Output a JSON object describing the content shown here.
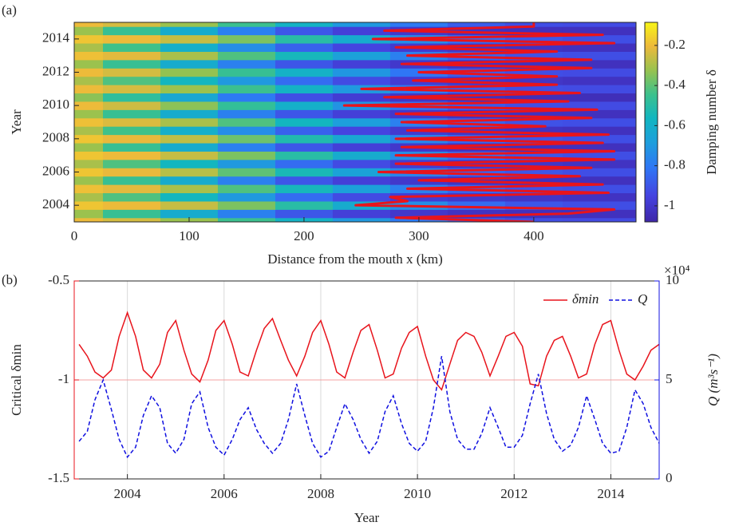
{
  "chart_data": [
    {
      "type": "heatmap",
      "panel_label": "(a)",
      "x_label": "Distance from the mouth x (km)",
      "y_label": "Year",
      "colorbar_label": "Damping number δ",
      "xlim": [
        0,
        489
      ],
      "xticks": [
        0,
        100,
        200,
        300,
        400
      ],
      "ylim": [
        2003,
        2015
      ],
      "yticks": [
        2004,
        2006,
        2008,
        2010,
        2012,
        2014
      ],
      "clim": [
        -1.08,
        -0.085
      ],
      "cticks": [
        -1,
        -0.8,
        -0.6,
        -0.4,
        -0.2
      ],
      "colormap": "parula",
      "x": [
        0,
        50,
        100,
        150,
        200,
        250,
        300,
        350,
        400,
        450
      ],
      "y": [
        2003,
        2003.5,
        2004,
        2004.5,
        2005,
        2005.5,
        2006,
        2006.5,
        2007,
        2007.5,
        2008,
        2008.5,
        2009,
        2009.5,
        2010,
        2010.5,
        2011,
        2011.5,
        2012,
        2012.5,
        2013,
        2013.5,
        2014,
        2014.5,
        2015
      ],
      "z": [
        [
          -0.2,
          -0.24,
          -0.32,
          -0.45,
          -0.58,
          -0.7,
          -0.8,
          -0.88,
          -0.92,
          -0.93
        ],
        [
          -0.32,
          -0.46,
          -0.62,
          -0.78,
          -0.9,
          -0.97,
          -1.0,
          -1.02,
          -1.03,
          -1.03
        ],
        [
          -0.18,
          -0.2,
          -0.26,
          -0.36,
          -0.5,
          -0.62,
          -0.74,
          -0.84,
          -0.9,
          -0.92
        ],
        [
          -0.3,
          -0.42,
          -0.56,
          -0.7,
          -0.84,
          -0.93,
          -0.98,
          -1.0,
          -1.01,
          -1.02
        ],
        [
          -0.19,
          -0.22,
          -0.3,
          -0.42,
          -0.55,
          -0.67,
          -0.78,
          -0.86,
          -0.91,
          -0.92
        ],
        [
          -0.32,
          -0.46,
          -0.62,
          -0.78,
          -0.9,
          -0.97,
          -1.0,
          -1.02,
          -1.03,
          -1.03
        ],
        [
          -0.18,
          -0.21,
          -0.28,
          -0.4,
          -0.54,
          -0.66,
          -0.77,
          -0.86,
          -0.9,
          -0.92
        ],
        [
          -0.3,
          -0.42,
          -0.56,
          -0.7,
          -0.84,
          -0.93,
          -0.98,
          -1.0,
          -1.01,
          -1.02
        ],
        [
          -0.18,
          -0.2,
          -0.26,
          -0.36,
          -0.5,
          -0.62,
          -0.74,
          -0.84,
          -0.9,
          -0.92
        ],
        [
          -0.32,
          -0.46,
          -0.62,
          -0.78,
          -0.9,
          -0.97,
          -1.0,
          -1.02,
          -1.03,
          -1.03
        ],
        [
          -0.18,
          -0.21,
          -0.27,
          -0.38,
          -0.52,
          -0.64,
          -0.76,
          -0.85,
          -0.9,
          -0.92
        ],
        [
          -0.3,
          -0.44,
          -0.6,
          -0.74,
          -0.87,
          -0.95,
          -0.99,
          -1.01,
          -1.02,
          -1.03
        ],
        [
          -0.19,
          -0.23,
          -0.3,
          -0.42,
          -0.56,
          -0.68,
          -0.78,
          -0.86,
          -0.91,
          -0.92
        ],
        [
          -0.32,
          -0.46,
          -0.62,
          -0.78,
          -0.9,
          -0.97,
          -1.0,
          -1.02,
          -1.03,
          -1.03
        ],
        [
          -0.2,
          -0.25,
          -0.34,
          -0.47,
          -0.6,
          -0.72,
          -0.82,
          -0.89,
          -0.92,
          -0.93
        ],
        [
          -0.34,
          -0.48,
          -0.64,
          -0.8,
          -0.92,
          -0.98,
          -1.01,
          -1.03,
          -1.04,
          -1.04
        ],
        [
          -0.2,
          -0.24,
          -0.32,
          -0.45,
          -0.58,
          -0.7,
          -0.8,
          -0.88,
          -0.92,
          -0.93
        ],
        [
          -0.3,
          -0.42,
          -0.56,
          -0.7,
          -0.84,
          -0.93,
          -0.98,
          -1.0,
          -1.01,
          -1.02
        ],
        [
          -0.2,
          -0.24,
          -0.33,
          -0.46,
          -0.59,
          -0.71,
          -0.81,
          -0.88,
          -0.92,
          -0.93
        ],
        [
          -0.32,
          -0.46,
          -0.62,
          -0.78,
          -0.9,
          -0.97,
          -1.0,
          -1.02,
          -1.03,
          -1.03
        ],
        [
          -0.19,
          -0.22,
          -0.3,
          -0.42,
          -0.55,
          -0.67,
          -0.78,
          -0.86,
          -0.91,
          -0.92
        ],
        [
          -0.3,
          -0.44,
          -0.6,
          -0.74,
          -0.87,
          -0.95,
          -0.99,
          -1.01,
          -1.02,
          -1.03
        ],
        [
          -0.18,
          -0.2,
          -0.26,
          -0.36,
          -0.5,
          -0.62,
          -0.74,
          -0.84,
          -0.9,
          -0.92
        ],
        [
          -0.32,
          -0.46,
          -0.62,
          -0.78,
          -0.9,
          -0.97,
          -1.0,
          -1.02,
          -1.03,
          -1.03
        ],
        [
          -0.2,
          -0.24,
          -0.32,
          -0.45,
          -0.58,
          -0.7,
          -0.8,
          -0.88,
          -0.92,
          -0.93
        ]
      ],
      "contour_color": "#e8141c",
      "contour_x": [
        400,
        280,
        430,
        470,
        245,
        290,
        275,
        465,
        290,
        460,
        300,
        440,
        265,
        450,
        280,
        470,
        280,
        470,
        285,
        460,
        280,
        465,
        290,
        410,
        285,
        450,
        280,
        455,
        235,
        430,
        270,
        440,
        250,
        420,
        295,
        420,
        300,
        450,
        285,
        450,
        290,
        420,
        280,
        470,
        260,
        460,
        270,
        400,
        400
      ],
      "contour_y": [
        2003,
        2003.25,
        2003.5,
        2003.75,
        2004,
        2004.25,
        2004.5,
        2004.75,
        2005,
        2005.25,
        2005.5,
        2005.75,
        2006,
        2006.25,
        2006.5,
        2006.75,
        2007,
        2007.25,
        2007.5,
        2007.75,
        2008,
        2008.25,
        2008.5,
        2008.75,
        2009,
        2009.25,
        2009.5,
        2009.75,
        2010,
        2010.25,
        2010.5,
        2010.75,
        2011,
        2011.25,
        2011.5,
        2011.75,
        2012,
        2012.25,
        2012.5,
        2012.75,
        2013,
        2013.25,
        2013.5,
        2013.75,
        2014,
        2014.25,
        2014.5,
        2014.75,
        2015
      ]
    },
    {
      "type": "line",
      "panel_label": "(b)",
      "x_label": "Year",
      "y_label": "Critical δmin",
      "y2_label": "Q (m³s⁻¹)",
      "y2_multiplier": "×10⁴",
      "xlim": [
        2002.9,
        2015
      ],
      "xticks": [
        2004,
        2006,
        2008,
        2010,
        2012,
        2014
      ],
      "grid": "x",
      "ylim": [
        -1.5,
        -0.5
      ],
      "yticks": [
        -1.5,
        -1,
        -0.5
      ],
      "y_color": "#e8141c",
      "y2lim": [
        0,
        10
      ],
      "y2ticks": [
        0,
        5,
        10
      ],
      "y2_color": "#1010e0",
      "hline": -1,
      "hline_color": "#f4a0a0",
      "legend": "top-right",
      "x": [
        2003,
        2003.17,
        2003.33,
        2003.5,
        2003.67,
        2003.83,
        2004,
        2004.17,
        2004.33,
        2004.5,
        2004.67,
        2004.83,
        2005,
        2005.17,
        2005.33,
        2005.5,
        2005.67,
        2005.83,
        2006,
        2006.17,
        2006.33,
        2006.5,
        2006.67,
        2006.83,
        2007,
        2007.17,
        2007.33,
        2007.5,
        2007.67,
        2007.83,
        2008,
        2008.17,
        2008.33,
        2008.5,
        2008.67,
        2008.83,
        2009,
        2009.17,
        2009.33,
        2009.5,
        2009.67,
        2009.83,
        2010,
        2010.17,
        2010.33,
        2010.5,
        2010.67,
        2010.83,
        2011,
        2011.17,
        2011.33,
        2011.5,
        2011.67,
        2011.83,
        2012,
        2012.17,
        2012.33,
        2012.5,
        2012.67,
        2012.83,
        2013,
        2013.17,
        2013.33,
        2013.5,
        2013.67,
        2013.83,
        2014,
        2014.17,
        2014.33,
        2014.5,
        2014.67,
        2014.83,
        2015
      ],
      "series": [
        {
          "name": "δmin",
          "color": "#e8141c",
          "dash": false,
          "values": [
            -0.82,
            -0.88,
            -0.96,
            -0.99,
            -0.95,
            -0.78,
            -0.66,
            -0.78,
            -0.95,
            -0.99,
            -0.92,
            -0.76,
            -0.7,
            -0.85,
            -0.97,
            -1.01,
            -0.9,
            -0.75,
            -0.7,
            -0.82,
            -0.96,
            -0.98,
            -0.85,
            -0.74,
            -0.69,
            -0.8,
            -0.9,
            -0.98,
            -0.88,
            -0.76,
            -0.7,
            -0.82,
            -0.96,
            -0.99,
            -0.86,
            -0.75,
            -0.72,
            -0.85,
            -0.99,
            -0.97,
            -0.84,
            -0.76,
            -0.73,
            -0.88,
            -1,
            -1.05,
            -0.92,
            -0.8,
            -0.76,
            -0.78,
            -0.86,
            -0.98,
            -0.88,
            -0.78,
            -0.76,
            -0.83,
            -1.02,
            -1.03,
            -0.88,
            -0.8,
            -0.78,
            -0.88,
            -0.99,
            -0.97,
            -0.82,
            -0.72,
            -0.7,
            -0.85,
            -0.97,
            -1,
            -0.93,
            -0.85,
            -0.82
          ]
        },
        {
          "name": "Q",
          "color": "#1010e0",
          "dash": true,
          "axis": "y2",
          "values": [
            1.9,
            2.4,
            4,
            5,
            3.5,
            2,
            1.1,
            1.6,
            3.2,
            4.2,
            3.6,
            1.8,
            1.3,
            2,
            3.8,
            4.4,
            2.6,
            1.6,
            1.2,
            2,
            3,
            3.6,
            2.5,
            1.8,
            1.3,
            1.8,
            3,
            4.8,
            3.2,
            1.8,
            1.1,
            1.4,
            2.6,
            3.8,
            3,
            2,
            1.3,
            1.9,
            3.4,
            4.2,
            2.8,
            1.8,
            1.4,
            1.9,
            3.6,
            6.2,
            3.4,
            2,
            1.5,
            1.5,
            2.3,
            3.6,
            2.6,
            1.6,
            1.6,
            2.2,
            3.8,
            5.3,
            3.3,
            2,
            1.4,
            1.7,
            2.6,
            4.2,
            3,
            1.8,
            1.3,
            1.4,
            2.6,
            4.5,
            3.8,
            2.6,
            1.8
          ]
        }
      ]
    }
  ]
}
